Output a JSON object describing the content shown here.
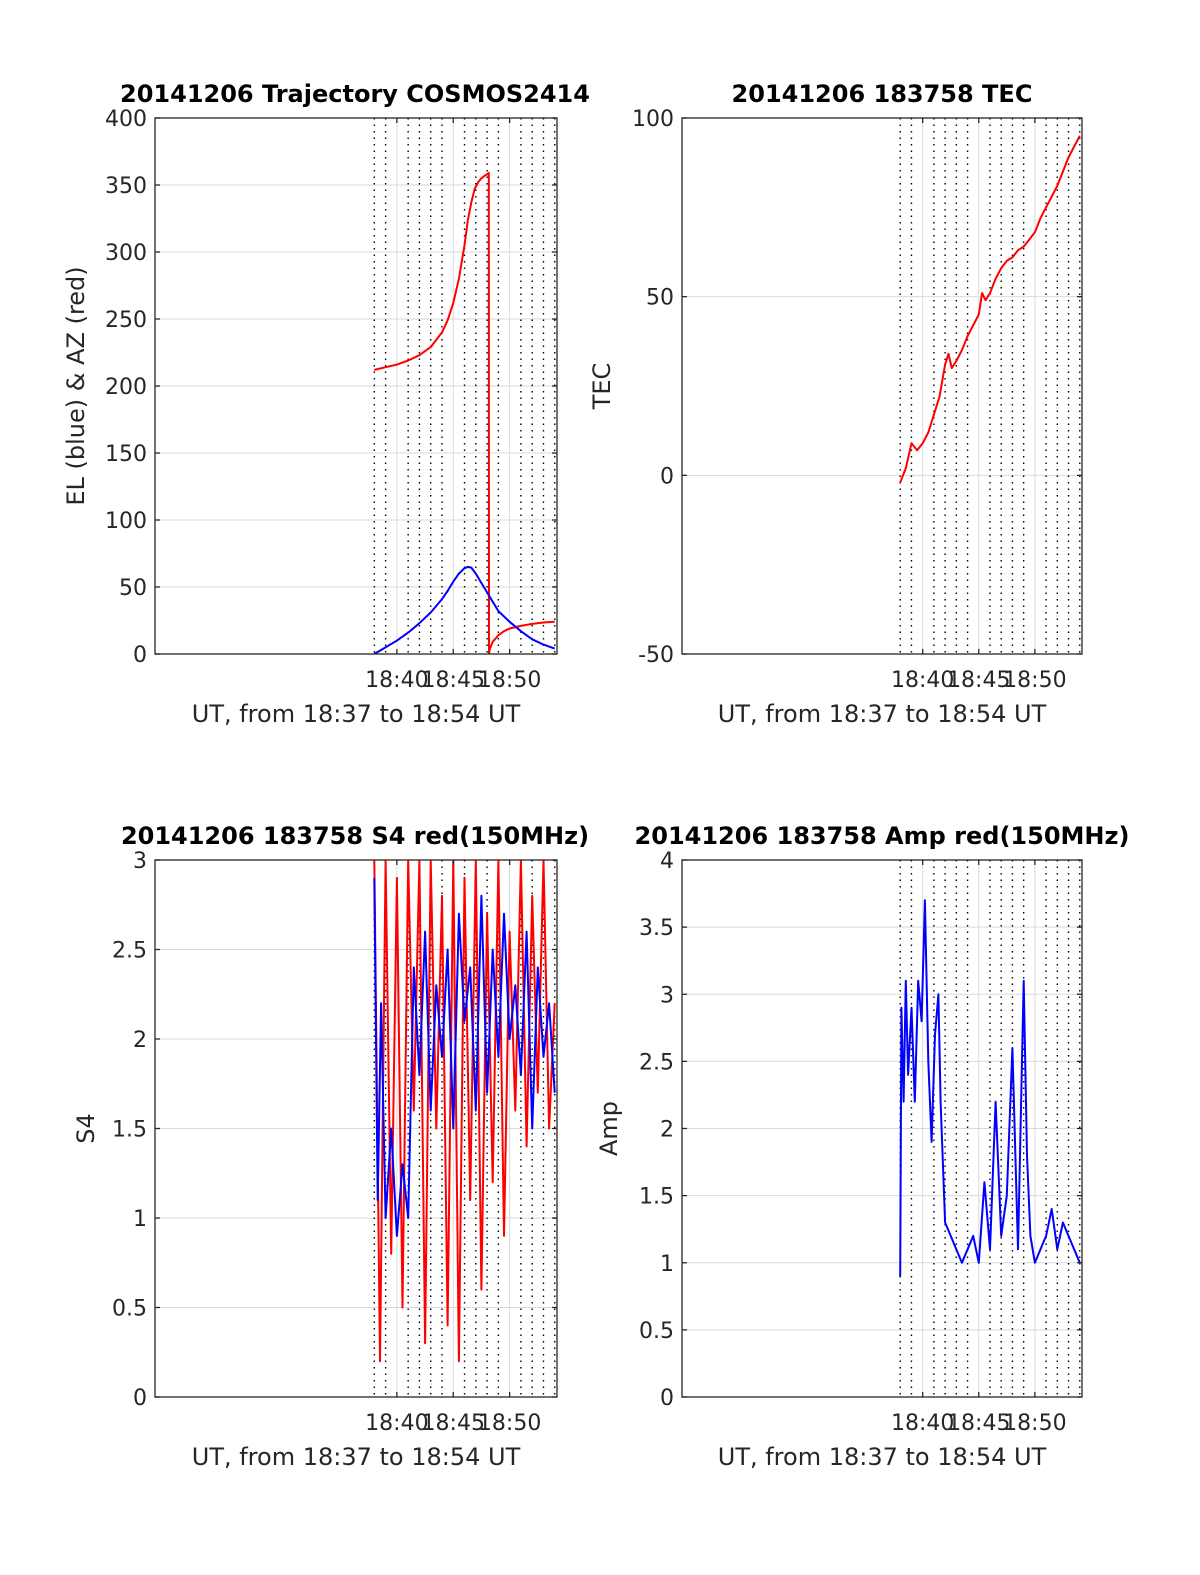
{
  "figure": {
    "background": "#ffffff",
    "grid_style": "dotted vertical, light horizontal"
  },
  "colors": {
    "red": "#ff0000",
    "blue": "#0000ff",
    "axis": "#262626"
  },
  "chart_data": [
    {
      "id": "trajectory",
      "type": "line",
      "title": "20141206 Trajectory COSMOS2414",
      "xlabel": "UT, from 18:37 to 18:54 UT",
      "ylabel": "EL (blue) & AZ (red)",
      "xlim": [
        18.55,
        54.2
      ],
      "ylim": [
        0,
        400
      ],
      "xticks": [
        {
          "v": 40,
          "label": "18:40"
        },
        {
          "v": 45,
          "label": "18:45"
        },
        {
          "v": 50,
          "label": "18:50"
        }
      ],
      "yticks": [
        0,
        50,
        100,
        150,
        200,
        250,
        300,
        350,
        400
      ],
      "grid": "on",
      "series": [
        {
          "color": "#ff0000",
          "x": [
            38.0,
            39.0,
            40.0,
            41.0,
            42.0,
            43.0,
            44.0,
            44.5,
            45.0,
            45.5,
            46.0,
            46.3,
            46.6,
            46.9,
            47.2,
            47.5,
            47.8,
            48.0,
            48.15,
            48.17,
            48.25,
            48.5,
            49.0,
            49.5,
            50.0,
            51.0,
            52.0,
            53.0,
            54.0
          ],
          "y": [
            212,
            214,
            216,
            219,
            223,
            229,
            240,
            249,
            262,
            280,
            305,
            324,
            337,
            347,
            352,
            355,
            357,
            358,
            359,
            0,
            4,
            9,
            14,
            17,
            19,
            21,
            22.5,
            23.5,
            24
          ]
        },
        {
          "color": "#0000ff",
          "x": [
            38.0,
            39.0,
            40.0,
            41.0,
            42.0,
            43.0,
            44.0,
            44.5,
            45.0,
            45.5,
            46.0,
            46.3,
            46.6,
            47.0,
            47.5,
            48.0,
            48.5,
            49.0,
            50.0,
            51.0,
            52.0,
            53.0,
            54.0
          ],
          "y": [
            0,
            5,
            10,
            16,
            23,
            31,
            41,
            47,
            54,
            60,
            64,
            65,
            64.5,
            60,
            53,
            46,
            39,
            32,
            24,
            17,
            11,
            7,
            4
          ]
        }
      ]
    },
    {
      "id": "tec",
      "type": "line",
      "title": "20141206 183758 TEC",
      "xlabel": "UT, from 18:37 to 18:54 UT",
      "ylabel": "TEC",
      "xlim": [
        18.55,
        54.2
      ],
      "ylim": [
        -50,
        100
      ],
      "xticks": [
        {
          "v": 40,
          "label": "18:40"
        },
        {
          "v": 45,
          "label": "18:45"
        },
        {
          "v": 50,
          "label": "18:50"
        }
      ],
      "yticks": [
        -50,
        0,
        50,
        100
      ],
      "grid": "on",
      "series": [
        {
          "color": "#ff0000",
          "x": [
            38.0,
            38.5,
            39.0,
            39.5,
            40.0,
            40.5,
            41.0,
            41.5,
            42.0,
            42.3,
            42.6,
            43.0,
            43.5,
            44.0,
            44.5,
            45.0,
            45.3,
            45.6,
            46.0,
            46.5,
            47.0,
            47.5,
            48.0,
            48.5,
            49.0,
            49.5,
            50.0,
            50.5,
            51.0,
            51.5,
            52.0,
            52.5,
            53.0,
            53.5,
            54.0
          ],
          "y": [
            -2,
            2,
            9,
            7,
            9,
            12,
            17,
            22,
            31,
            34,
            30,
            32,
            35,
            39,
            42,
            45,
            51,
            49,
            51,
            55,
            58,
            60,
            61,
            63,
            64,
            66,
            68,
            72,
            75,
            78,
            81,
            85,
            89,
            92,
            95
          ]
        }
      ]
    },
    {
      "id": "s4",
      "type": "line",
      "title": "20141206 183758 S4 red(150MHz)",
      "xlabel": "UT, from 18:37 to 18:54 UT",
      "ylabel": "S4",
      "xlim": [
        18.55,
        54.2
      ],
      "ylim": [
        0,
        3
      ],
      "xticks": [
        {
          "v": 40,
          "label": "18:40"
        },
        {
          "v": 45,
          "label": "18:45"
        },
        {
          "v": 50,
          "label": "18:50"
        }
      ],
      "yticks": [
        0,
        0.5,
        1,
        1.5,
        2,
        2.5,
        3
      ],
      "grid": "on",
      "series": [
        {
          "color": "#ff0000",
          "x": [
            38.0,
            38.5,
            39.0,
            39.5,
            40.0,
            40.5,
            41.0,
            41.5,
            42.0,
            42.5,
            43.0,
            43.5,
            44.0,
            44.5,
            45.0,
            45.5,
            46.0,
            46.5,
            47.0,
            47.5,
            48.0,
            48.5,
            49.0,
            49.5,
            50.0,
            50.5,
            51.0,
            51.5,
            52.0,
            52.5,
            53.0,
            53.5,
            54.0
          ],
          "y": [
            3.0,
            0.2,
            3.0,
            0.8,
            2.9,
            0.5,
            3.0,
            1.6,
            3.0,
            0.3,
            3.0,
            1.5,
            2.8,
            0.4,
            3.0,
            0.2,
            2.9,
            1.1,
            3.0,
            0.6,
            2.7,
            1.2,
            3.0,
            0.9,
            2.6,
            1.6,
            3.0,
            1.4,
            2.8,
            1.7,
            3.0,
            1.5,
            2.2
          ]
        },
        {
          "color": "#0000ff",
          "x": [
            38.0,
            38.3,
            38.6,
            39.0,
            39.5,
            40.0,
            40.5,
            41.0,
            41.5,
            42.0,
            42.5,
            43.0,
            43.5,
            44.0,
            44.5,
            45.0,
            45.5,
            46.0,
            46.5,
            47.0,
            47.5,
            48.0,
            48.5,
            49.0,
            49.5,
            50.0,
            50.5,
            51.0,
            51.5,
            52.0,
            52.5,
            53.0,
            53.5,
            54.0
          ],
          "y": [
            2.9,
            1.1,
            2.2,
            1.0,
            1.5,
            0.9,
            1.3,
            1.0,
            2.4,
            1.8,
            2.6,
            1.6,
            2.3,
            1.9,
            2.5,
            1.5,
            2.7,
            2.1,
            2.4,
            1.6,
            2.8,
            1.7,
            2.5,
            1.9,
            2.7,
            2.0,
            2.3,
            1.8,
            2.6,
            1.5,
            2.4,
            1.9,
            2.2,
            1.7
          ]
        }
      ]
    },
    {
      "id": "amp",
      "type": "line",
      "title": "20141206 183758 Amp red(150MHz)",
      "xlabel": "UT, from 18:37 to 18:54 UT",
      "ylabel": "Amp",
      "xlim": [
        18.55,
        54.2
      ],
      "ylim": [
        0,
        4
      ],
      "xticks": [
        {
          "v": 40,
          "label": "18:40"
        },
        {
          "v": 45,
          "label": "18:45"
        },
        {
          "v": 50,
          "label": "18:50"
        }
      ],
      "yticks": [
        0,
        0.5,
        1,
        1.5,
        2,
        2.5,
        3,
        3.5,
        4
      ],
      "grid": "on",
      "series": [
        {
          "color": "#0000ff",
          "x": [
            38.0,
            38.1,
            38.3,
            38.5,
            38.7,
            39.0,
            39.3,
            39.6,
            39.9,
            40.2,
            40.5,
            40.8,
            41.1,
            41.4,
            41.6,
            42.0,
            42.5,
            43.0,
            43.5,
            44.0,
            44.5,
            45.0,
            45.5,
            46.0,
            46.5,
            47.0,
            47.5,
            48.0,
            48.5,
            49.0,
            49.3,
            49.6,
            50.0,
            50.5,
            51.0,
            51.5,
            52.0,
            52.5,
            53.0,
            53.5,
            54.0
          ],
          "y": [
            0.9,
            2.9,
            2.2,
            3.1,
            2.4,
            2.9,
            2.2,
            3.1,
            2.8,
            3.7,
            2.5,
            1.9,
            2.7,
            3.0,
            2.2,
            1.3,
            1.2,
            1.1,
            1.0,
            1.1,
            1.2,
            1.0,
            1.6,
            1.1,
            2.2,
            1.2,
            1.5,
            2.6,
            1.1,
            3.1,
            1.8,
            1.2,
            1.0,
            1.1,
            1.2,
            1.4,
            1.1,
            1.3,
            1.2,
            1.1,
            1.0
          ]
        }
      ]
    }
  ]
}
